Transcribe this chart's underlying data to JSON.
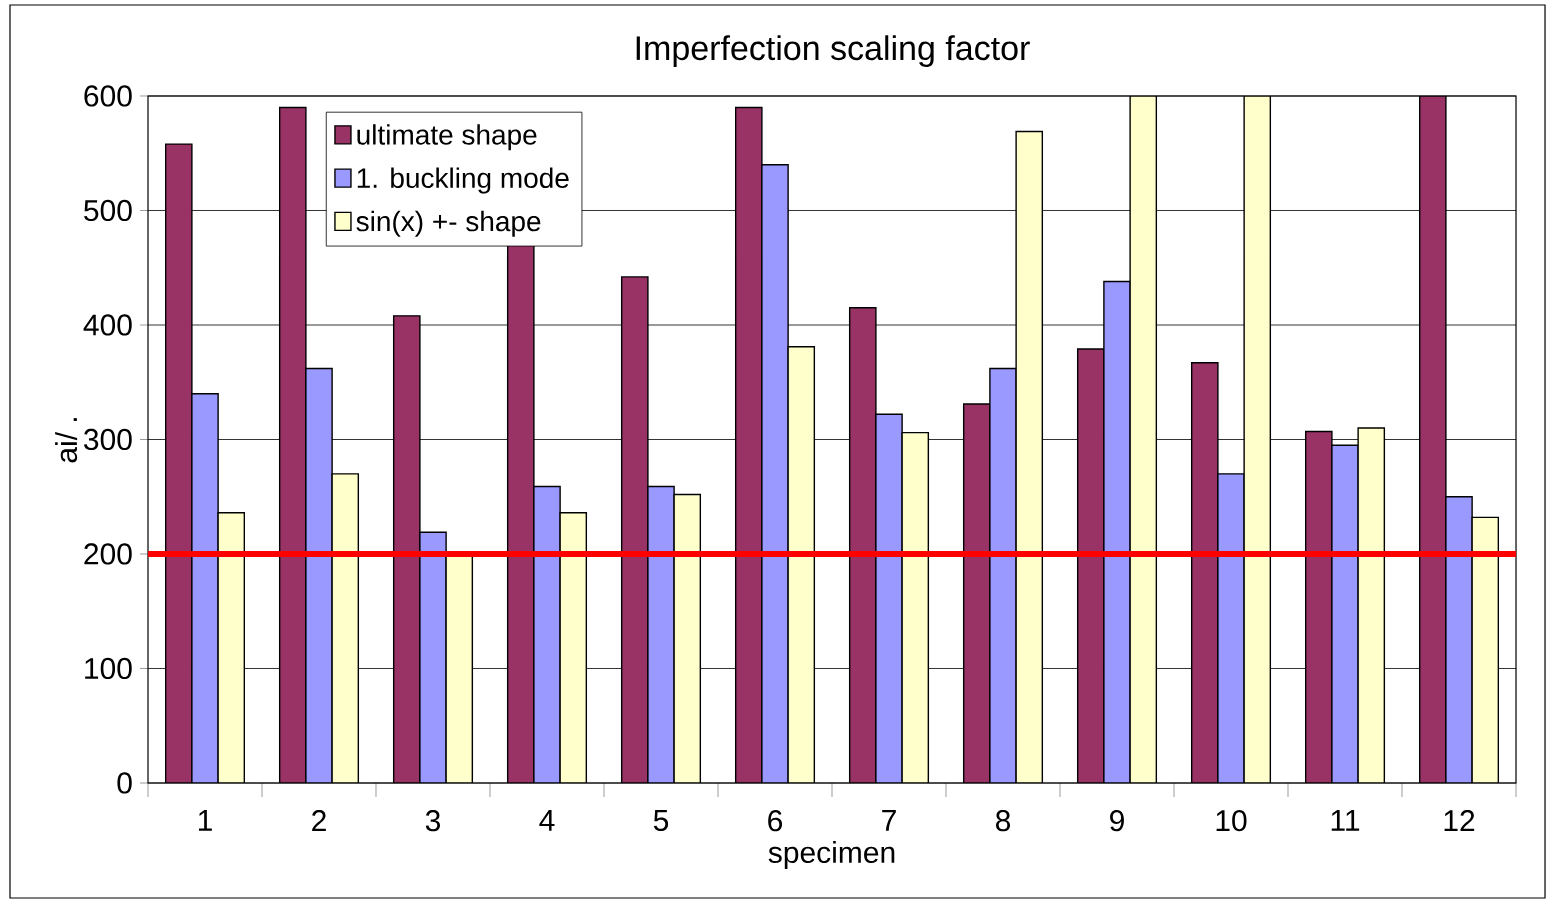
{
  "chart_data": {
    "type": "bar",
    "title": "Imperfection scaling factor",
    "xlabel": "specimen",
    "ylabel": "ai/ .",
    "categories": [
      "1",
      "2",
      "3",
      "4",
      "5",
      "6",
      "7",
      "8",
      "9",
      "10",
      "11",
      "12"
    ],
    "series": [
      {
        "name": "ultimate shape",
        "color": "#993366",
        "values": [
          558,
          590,
          408,
          470,
          442,
          590,
          415,
          331,
          379,
          367,
          307,
          600
        ]
      },
      {
        "name": "1. buckling mode",
        "color": "#9999ff",
        "values": [
          340,
          362,
          219,
          259,
          259,
          540,
          322,
          362,
          438,
          270,
          295,
          250
        ]
      },
      {
        "name": "sin(x) +- shape",
        "color": "#ffffcc",
        "values": [
          236,
          270,
          200,
          236,
          252,
          381,
          306,
          569,
          600,
          600,
          310,
          232
        ]
      }
    ],
    "ylim": [
      0,
      600
    ],
    "yticks": [
      0,
      100,
      200,
      300,
      400,
      500,
      600
    ],
    "ref_lines": [
      {
        "axis": "y",
        "value": 200,
        "color": "#ff0000"
      }
    ],
    "grid": "y",
    "legend": "top left"
  }
}
